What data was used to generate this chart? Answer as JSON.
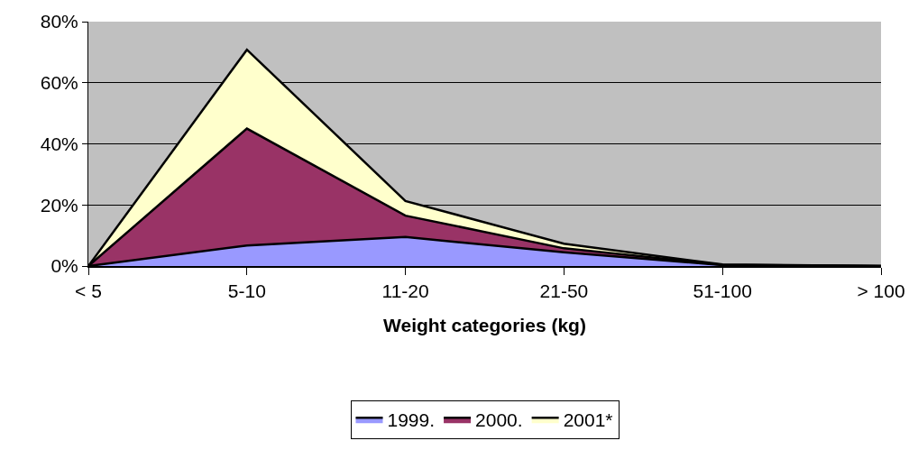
{
  "chart_data": {
    "type": "area",
    "stacked": true,
    "xlabel": "Weight categories (kg)",
    "categories": [
      "< 5",
      "5-10",
      "11-20",
      "21-50",
      "51-100",
      "> 100"
    ],
    "series": [
      {
        "name": "1999.",
        "color": "#9999ff",
        "values": [
          0,
          6.7,
          9.5,
          4.5,
          0.3,
          0
        ]
      },
      {
        "name": "2000.",
        "color": "#993366",
        "values": [
          0,
          38.3,
          7,
          1.3,
          0.1,
          0
        ]
      },
      {
        "name": "2001*",
        "color": "#ffffcc",
        "values": [
          0,
          25.8,
          4.8,
          1.5,
          0.1,
          0
        ]
      }
    ],
    "ylim": [
      0,
      80
    ],
    "yticks": [
      {
        "value": 0,
        "label": "0%"
      },
      {
        "value": 20,
        "label": "20%"
      },
      {
        "value": 40,
        "label": "40%"
      },
      {
        "value": 60,
        "label": "60%"
      },
      {
        "value": 80,
        "label": "80%"
      }
    ],
    "grid": "y",
    "legend": "bottom"
  }
}
